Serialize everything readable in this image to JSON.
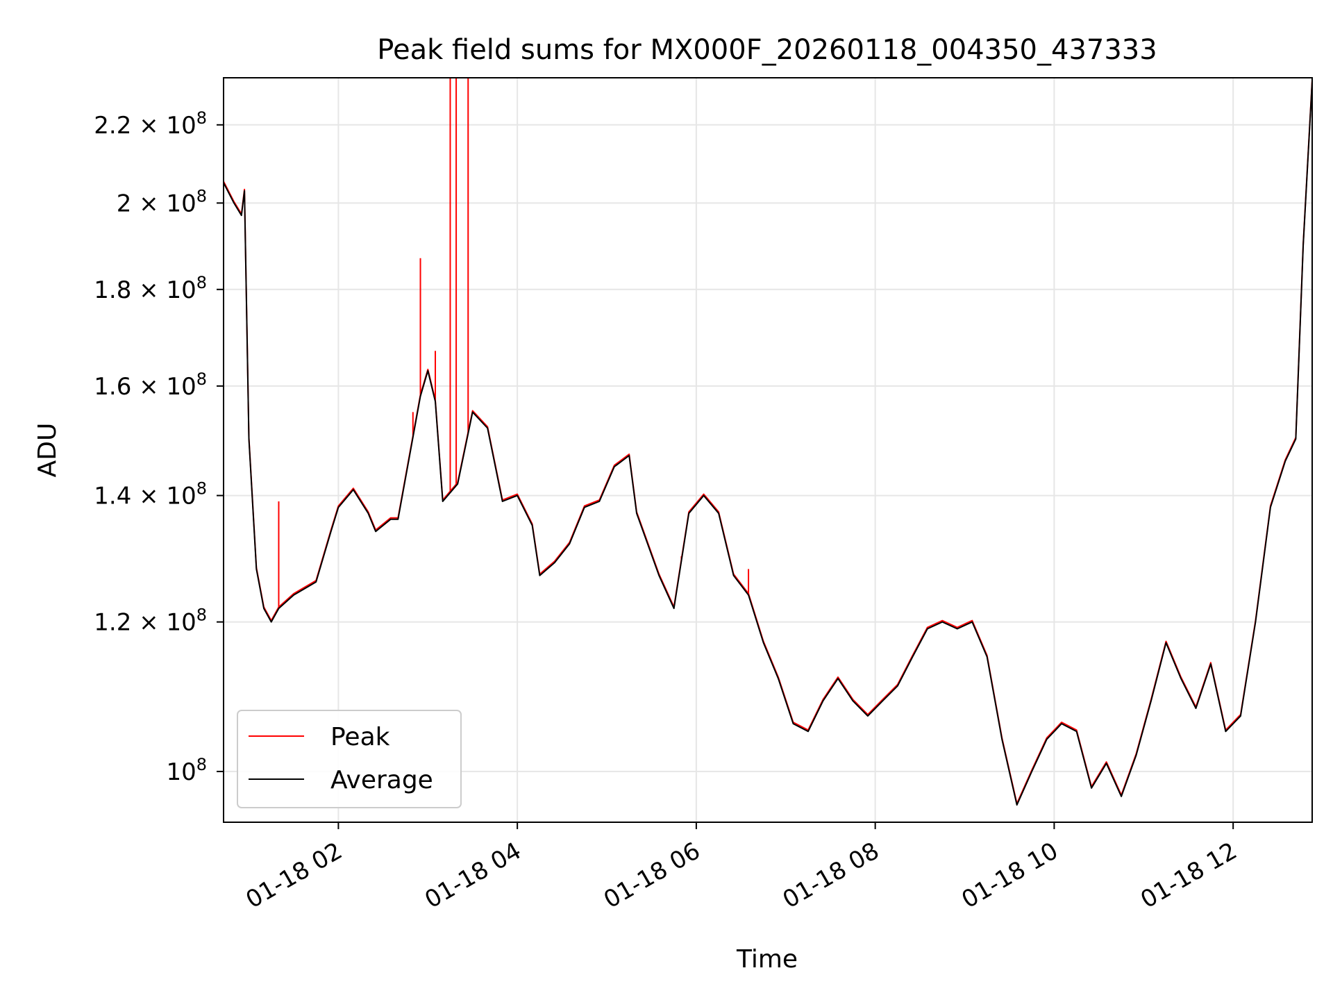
{
  "chart_data": {
    "type": "line",
    "title": "Peak field sums for MX000F_20260118_004350_437333",
    "xlabel": "Time",
    "ylabel": "ADU",
    "yscale": "log",
    "xlim": [
      "01-18 00:43",
      "01-18 12:53"
    ],
    "ylim": [
      94000000,
      233000000
    ],
    "grid": true,
    "legend": {
      "position": "lower-left",
      "entries": [
        "Peak",
        "Average"
      ]
    },
    "x_ticks": [
      "01-18 02",
      "01-18 04",
      "01-18 06",
      "01-18 08",
      "01-18 10",
      "01-18 12"
    ],
    "y_ticks": [
      {
        "value": 100000000,
        "mantissa": "",
        "exp": "8"
      },
      {
        "value": 120000000,
        "mantissa": "1.2",
        "exp": "8"
      },
      {
        "value": 140000000,
        "mantissa": "1.4",
        "exp": "8"
      },
      {
        "value": 160000000,
        "mantissa": "1.6",
        "exp": "8"
      },
      {
        "value": 180000000,
        "mantissa": "1.8",
        "exp": "8"
      },
      {
        "value": 200000000,
        "mantissa": "2",
        "exp": "8"
      },
      {
        "value": 220000000,
        "mantissa": "2.2",
        "exp": "8"
      }
    ],
    "series": [
      {
        "name": "Average",
        "color": "#000000",
        "points": [
          [
            "01-18 00:43",
            205000000
          ],
          [
            "01-18 00:50",
            200000000
          ],
          [
            "01-18 00:55",
            197000000
          ],
          [
            "01-18 00:57",
            203000000
          ],
          [
            "01-18 01:00",
            150000000
          ],
          [
            "01-18 01:05",
            128000000
          ],
          [
            "01-18 01:10",
            122000000
          ],
          [
            "01-18 01:15",
            120000000
          ],
          [
            "01-18 01:20",
            122000000
          ],
          [
            "01-18 01:30",
            124000000
          ],
          [
            "01-18 01:45",
            126000000
          ],
          [
            "01-18 01:55",
            134000000
          ],
          [
            "01-18 02:00",
            138000000
          ],
          [
            "01-18 02:10",
            141000000
          ],
          [
            "01-18 02:20",
            137000000
          ],
          [
            "01-18 02:25",
            134000000
          ],
          [
            "01-18 02:35",
            136000000
          ],
          [
            "01-18 02:40",
            136000000
          ],
          [
            "01-18 02:55",
            158000000
          ],
          [
            "01-18 03:00",
            163000000
          ],
          [
            "01-18 03:05",
            157000000
          ],
          [
            "01-18 03:10",
            139000000
          ],
          [
            "01-18 03:20",
            142000000
          ],
          [
            "01-18 03:30",
            155000000
          ],
          [
            "01-18 03:40",
            152000000
          ],
          [
            "01-18 03:50",
            139000000
          ],
          [
            "01-18 04:00",
            140000000
          ],
          [
            "01-18 04:10",
            135000000
          ],
          [
            "01-18 04:15",
            127000000
          ],
          [
            "01-18 04:25",
            129000000
          ],
          [
            "01-18 04:35",
            132000000
          ],
          [
            "01-18 04:45",
            138000000
          ],
          [
            "01-18 04:55",
            139000000
          ],
          [
            "01-18 05:05",
            145000000
          ],
          [
            "01-18 05:15",
            147000000
          ],
          [
            "01-18 05:20",
            137000000
          ],
          [
            "01-18 05:35",
            127000000
          ],
          [
            "01-18 05:45",
            122000000
          ],
          [
            "01-18 05:55",
            137000000
          ],
          [
            "01-18 06:05",
            140000000
          ],
          [
            "01-18 06:15",
            137000000
          ],
          [
            "01-18 06:25",
            127000000
          ],
          [
            "01-18 06:35",
            124000000
          ],
          [
            "01-18 06:45",
            117000000
          ],
          [
            "01-18 06:55",
            112000000
          ],
          [
            "01-18 07:05",
            106000000
          ],
          [
            "01-18 07:15",
            105000000
          ],
          [
            "01-18 07:25",
            109000000
          ],
          [
            "01-18 07:35",
            112000000
          ],
          [
            "01-18 07:45",
            109000000
          ],
          [
            "01-18 07:55",
            107000000
          ],
          [
            "01-18 08:05",
            109000000
          ],
          [
            "01-18 08:15",
            111000000
          ],
          [
            "01-18 08:25",
            115000000
          ],
          [
            "01-18 08:35",
            119000000
          ],
          [
            "01-18 08:45",
            120000000
          ],
          [
            "01-18 08:55",
            119000000
          ],
          [
            "01-18 09:05",
            120000000
          ],
          [
            "01-18 09:15",
            115000000
          ],
          [
            "01-18 09:25",
            104000000
          ],
          [
            "01-18 09:35",
            96000000
          ],
          [
            "01-18 09:45",
            100000000
          ],
          [
            "01-18 09:55",
            104000000
          ],
          [
            "01-18 10:05",
            106000000
          ],
          [
            "01-18 10:15",
            105000000
          ],
          [
            "01-18 10:25",
            98000000
          ],
          [
            "01-18 10:35",
            101000000
          ],
          [
            "01-18 10:45",
            97000000
          ],
          [
            "01-18 10:55",
            102000000
          ],
          [
            "01-18 11:05",
            109000000
          ],
          [
            "01-18 11:15",
            117000000
          ],
          [
            "01-18 11:25",
            112000000
          ],
          [
            "01-18 11:35",
            108000000
          ],
          [
            "01-18 11:45",
            114000000
          ],
          [
            "01-18 11:55",
            105000000
          ],
          [
            "01-18 12:05",
            107000000
          ],
          [
            "01-18 12:15",
            120000000
          ],
          [
            "01-18 12:25",
            138000000
          ],
          [
            "01-18 12:35",
            146000000
          ],
          [
            "01-18 12:42",
            150000000
          ],
          [
            "01-18 12:47",
            190000000
          ],
          [
            "01-18 12:53",
            232000000
          ]
        ]
      },
      {
        "name": "Peak",
        "color": "#ff0000",
        "spikes": [
          [
            "01-18 01:20",
            139000000
          ],
          [
            "01-18 02:50",
            155000000
          ],
          [
            "01-18 02:55",
            187000000
          ],
          [
            "01-18 03:05",
            167000000
          ],
          [
            "01-18 03:15",
            233000000
          ],
          [
            "01-18 03:19",
            233000000
          ],
          [
            "01-18 03:27",
            233000000
          ],
          [
            "01-18 05:50",
            130000000
          ],
          [
            "01-18 06:35",
            128000000
          ]
        ]
      }
    ]
  }
}
